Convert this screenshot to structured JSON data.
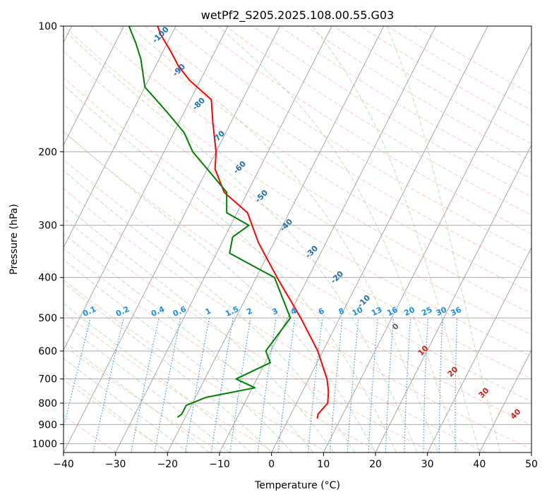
{
  "chart_data": {
    "type": "skew-t log-p",
    "title": "wetPf2_S205.2025.108.00.55.G03",
    "xlabel": "Temperature (°C)",
    "ylabel": "Pressure (hPa)",
    "xlim": [
      -40,
      50
    ],
    "ylim": [
      1050,
      100
    ],
    "y_scale": "log",
    "grid": true,
    "x_ticks": [
      "−40",
      "−30",
      "−20",
      "−10",
      "0",
      "10",
      "20",
      "30",
      "40",
      "50"
    ],
    "y_ticks": [
      "100",
      "200",
      "300",
      "400",
      "500",
      "600",
      "700",
      "800",
      "900",
      "1000"
    ],
    "temperature_profile": {
      "color": "#ff0000",
      "points": [
        {
          "p": 870,
          "t": 5.5
        },
        {
          "p": 850,
          "t": 5.2
        },
        {
          "p": 800,
          "t": 6.0
        },
        {
          "p": 750,
          "t": 5.0
        },
        {
          "p": 700,
          "t": 3.5
        },
        {
          "p": 600,
          "t": -1.0
        },
        {
          "p": 500,
          "t": -7.5
        },
        {
          "p": 400,
          "t": -16.0
        },
        {
          "p": 330,
          "t": -23.0
        },
        {
          "p": 280,
          "t": -28.0
        },
        {
          "p": 250,
          "t": -34.5
        },
        {
          "p": 220,
          "t": -38.5
        },
        {
          "p": 200,
          "t": -40.0
        },
        {
          "p": 170,
          "t": -43.5
        },
        {
          "p": 150,
          "t": -46.0
        },
        {
          "p": 135,
          "t": -52.0
        },
        {
          "p": 125,
          "t": -55.5
        },
        {
          "p": 115,
          "t": -58.5
        },
        {
          "p": 105,
          "t": -62.0
        },
        {
          "p": 100,
          "t": -63.5
        }
      ]
    },
    "dewpoint_profile": {
      "color": "#008000",
      "points": [
        {
          "p": 865,
          "t": -21.5
        },
        {
          "p": 850,
          "t": -21.0
        },
        {
          "p": 810,
          "t": -21.0
        },
        {
          "p": 775,
          "t": -18.0
        },
        {
          "p": 735,
          "t": -9.5
        },
        {
          "p": 700,
          "t": -14.0
        },
        {
          "p": 640,
          "t": -9.0
        },
        {
          "p": 600,
          "t": -11.0
        },
        {
          "p": 500,
          "t": -9.5
        },
        {
          "p": 400,
          "t": -16.5
        },
        {
          "p": 350,
          "t": -27.5
        },
        {
          "p": 320,
          "t": -28.5
        },
        {
          "p": 300,
          "t": -26.5
        },
        {
          "p": 280,
          "t": -32.0
        },
        {
          "p": 250,
          "t": -34.0
        },
        {
          "p": 220,
          "t": -40.0
        },
        {
          "p": 200,
          "t": -44.5
        },
        {
          "p": 180,
          "t": -48.0
        },
        {
          "p": 160,
          "t": -53.5
        },
        {
          "p": 140,
          "t": -60.0
        },
        {
          "p": 120,
          "t": -63.5
        },
        {
          "p": 110,
          "t": -66.0
        },
        {
          "p": 100,
          "t": -69.0
        }
      ]
    },
    "mixing_ratio_labels": [
      "0.1",
      "0.2",
      "0.4",
      "0.6",
      "1",
      "1.5",
      "2",
      "3",
      "4",
      "6",
      "8",
      "10",
      "13",
      "16",
      "20",
      "25",
      "30",
      "36"
    ],
    "dry_adiabat_labels": [
      "-100",
      "-90",
      "-80",
      "-70",
      "-60",
      "-50",
      "-40",
      "-30",
      "-20",
      "-10"
    ],
    "moist_adiabat_labels": [
      "0",
      "10",
      "20",
      "30",
      "40"
    ],
    "colors": {
      "temperature": "#ff0000",
      "dewpoint": "#008000",
      "isotherm": "#a0a0a0",
      "dry_adiabat": "#ff9f80",
      "moist_adiabat": "#8fcf8f",
      "mixing_ratio": "#1e8fe6",
      "dry_label": "#1f6fb0",
      "moist_label": "#d02020"
    }
  }
}
